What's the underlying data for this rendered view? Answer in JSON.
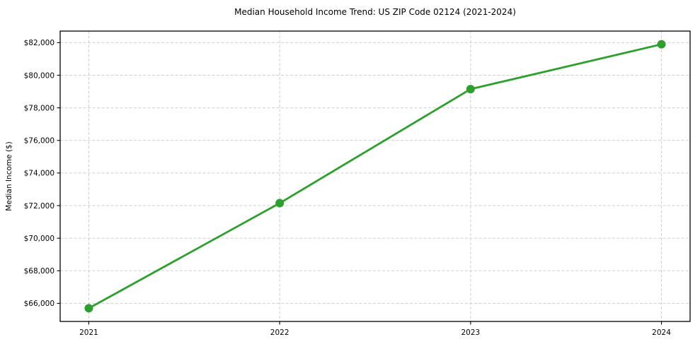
{
  "chart_data": {
    "type": "line",
    "title": "Median Household Income Trend: US ZIP Code 02124 (2021-2024)",
    "xlabel": "",
    "ylabel": "Median Income ($)",
    "x": [
      2021,
      2022,
      2023,
      2024
    ],
    "x_tick_labels": [
      "2021",
      "2022",
      "2023",
      "2024"
    ],
    "series": [
      {
        "name": "Median Household Income",
        "values": [
          65700,
          72150,
          79150,
          81900
        ],
        "color": "#2ca02c",
        "marker": "circle",
        "marker_radius": 6,
        "line_width": 2.8
      }
    ],
    "y_tick_values": [
      66000,
      68000,
      70000,
      72000,
      74000,
      76000,
      78000,
      80000,
      82000
    ],
    "y_tick_labels": [
      "$66,000",
      "$68,000",
      "$70,000",
      "$72,000",
      "$74,000",
      "$76,000",
      "$78,000",
      "$80,000",
      "$82,000"
    ],
    "ylim": [
      64890,
      82710
    ],
    "xlim": [
      2020.85,
      2024.15
    ],
    "grid": true,
    "grid_color": "#cfcfcf",
    "grid_dash": "4,2.5",
    "axis_color": "#000000",
    "background": "#ffffff",
    "legend": "none"
  }
}
